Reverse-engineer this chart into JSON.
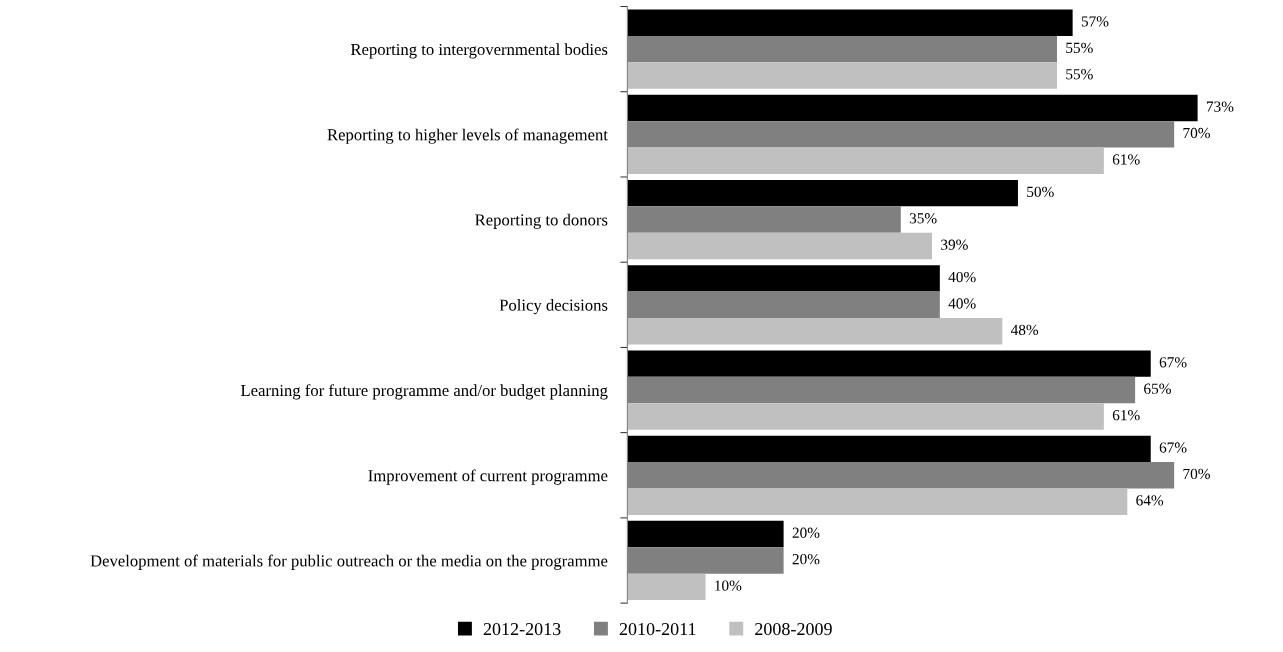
{
  "chart_data": {
    "type": "bar",
    "orientation": "horizontal",
    "legend": "bottom",
    "categories": [
      "Reporting to intergovernmental bodies",
      "Reporting to higher levels of management",
      "Reporting to donors",
      "Policy decisions",
      "Learning for future programme and/or budget planning",
      "Improvement of current programme",
      "Development of materials for public outreach or the media on the programme"
    ],
    "series": [
      {
        "name": "2012-2013",
        "color": "#000000",
        "values": [
          57,
          73,
          50,
          40,
          67,
          67,
          20
        ],
        "value_labels": [
          "57%",
          "73%",
          "50%",
          "40%",
          "67%",
          "67%",
          "20%"
        ]
      },
      {
        "name": "2010-2011",
        "color": "#808080",
        "values": [
          55,
          70,
          35,
          40,
          65,
          70,
          20
        ],
        "value_labels": [
          "55%",
          "70%",
          "35%",
          "40%",
          "65%",
          "70%",
          "20%"
        ]
      },
      {
        "name": "2008-2009",
        "color": "#c0c0c0",
        "values": [
          55,
          61,
          39,
          48,
          61,
          64,
          10
        ],
        "value_labels": [
          "55%",
          "61%",
          "39%",
          "48%",
          "61%",
          "64%",
          "10%"
        ]
      }
    ]
  }
}
